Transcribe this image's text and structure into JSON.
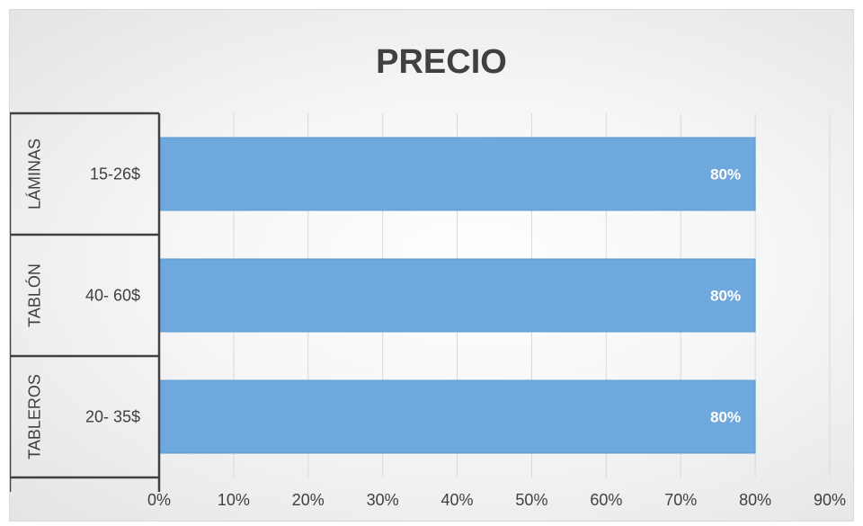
{
  "chart_data": {
    "type": "bar",
    "orientation": "horizontal",
    "title": "PRECIO",
    "categories": [
      {
        "group": "LÁMINAS",
        "label": "15-26$"
      },
      {
        "group": "TABLÓN",
        "label": "40- 60$"
      },
      {
        "group": "TABLEROS",
        "label": "20- 35$"
      }
    ],
    "values": [
      0.8,
      0.8,
      0.8
    ],
    "data_labels": [
      "80%",
      "80%",
      "80%"
    ],
    "xlim": [
      0,
      0.9
    ],
    "x_ticks": [
      "0%",
      "10%",
      "20%",
      "30%",
      "40%",
      "50%",
      "60%",
      "70%",
      "80%",
      "90%"
    ],
    "grid": true,
    "legend": "none",
    "colors": {
      "bar": "#6fa8dc",
      "bar_edge": "#5b9bd5",
      "grid": "#d9d9d9",
      "axis": "#404040"
    }
  }
}
